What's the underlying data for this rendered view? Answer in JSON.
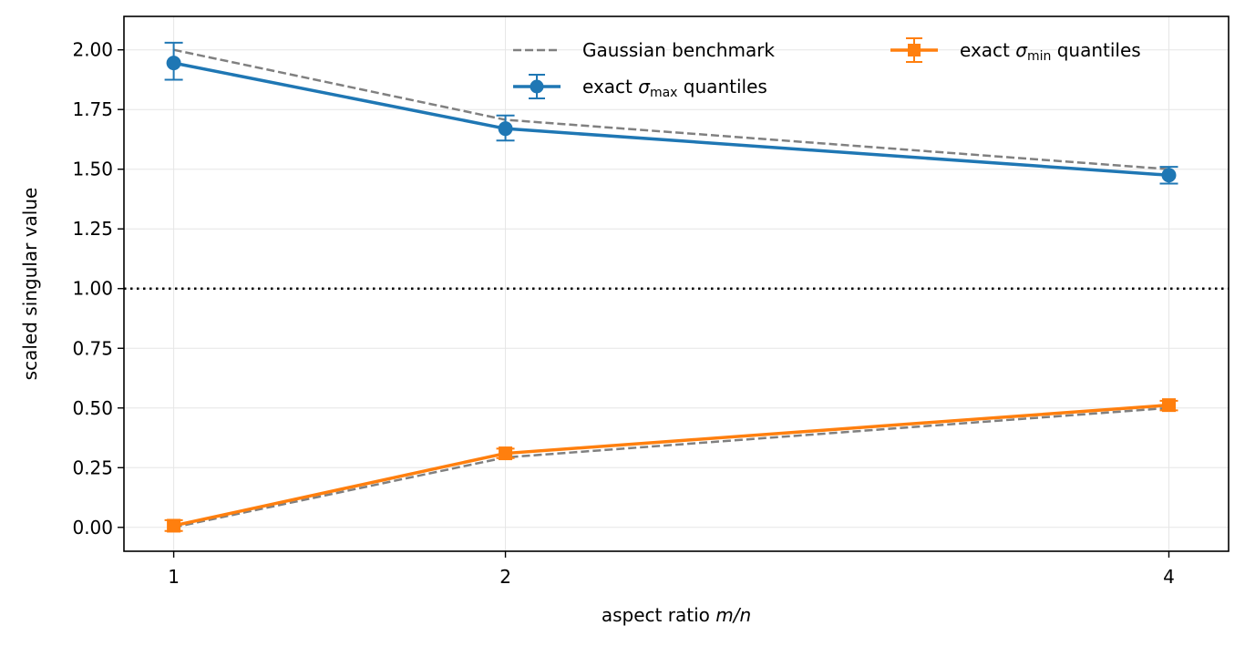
{
  "chart_data": {
    "type": "line",
    "xlabel_prefix": "aspect ratio ",
    "xlabel_var": "m/n",
    "ylabel": "scaled singular value",
    "x": [
      1,
      2,
      4
    ],
    "xticks": [
      "1",
      "2",
      "4"
    ],
    "xlim": [
      0.85,
      4.18
    ],
    "ylim": [
      -0.1,
      2.14
    ],
    "yticks": [
      "0.00",
      "0.25",
      "0.50",
      "0.75",
      "1.00",
      "1.25",
      "1.50",
      "1.75",
      "2.00"
    ],
    "grid": true,
    "reference_line_y": 1.0,
    "legend_placement": "top-right",
    "series": [
      {
        "name_prefix": "exact ",
        "name_var": "σ",
        "name_sub": "max",
        "name_suffix": " quantiles",
        "style": "solid-marker-circle",
        "color": "#1f77b4",
        "values": [
          1.945,
          1.67,
          1.475
        ],
        "err_low": [
          1.875,
          1.62,
          1.44
        ],
        "err_high": [
          2.03,
          1.725,
          1.51
        ]
      },
      {
        "name_prefix": "exact ",
        "name_var": "σ",
        "name_sub": "min",
        "name_suffix": " quantiles",
        "style": "solid-marker-square",
        "color": "#ff7f0e",
        "values": [
          0.007,
          0.31,
          0.512
        ],
        "err_low": [
          -0.015,
          0.29,
          0.49
        ],
        "err_high": [
          0.03,
          0.33,
          0.53
        ]
      },
      {
        "name": "Gaussian benchmark",
        "style": "dashed",
        "color": "#808080",
        "values": [
          2.0,
          1.707,
          1.5
        ]
      },
      {
        "name": "Gaussian benchmark lower",
        "style": "dashed",
        "color": "#808080",
        "values": [
          0.0,
          0.293,
          0.5
        ]
      }
    ],
    "ref_line_color": "#000000",
    "grid_color": "#e6e6e6"
  }
}
